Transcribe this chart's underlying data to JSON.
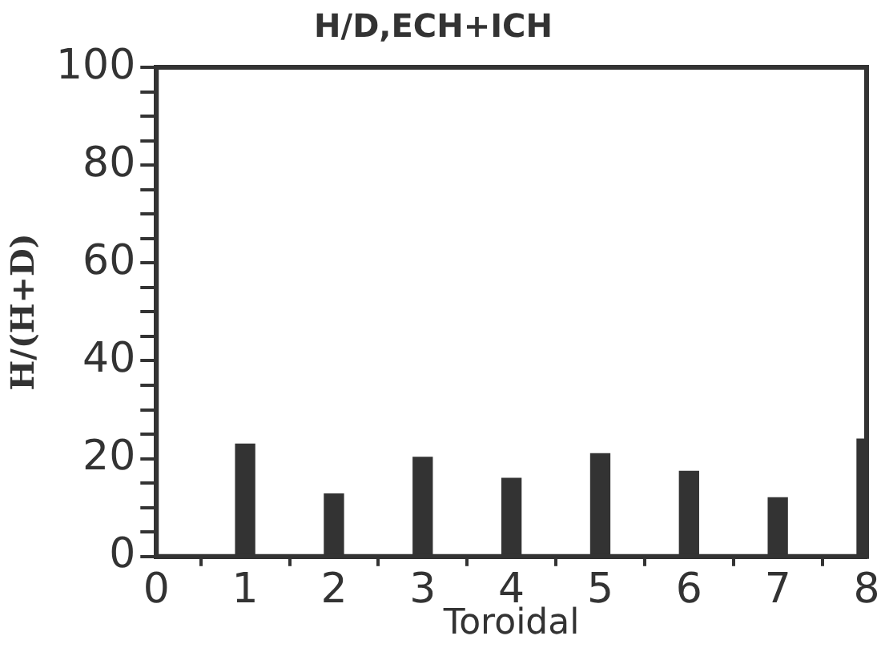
{
  "chart_data": {
    "type": "bar",
    "title": "H/D,ECH+ICH",
    "xlabel": "Toroidal",
    "ylabel": "H/(H+D)",
    "x": [
      1,
      2,
      3,
      4,
      5,
      6,
      7,
      8
    ],
    "values": [
      23,
      12.8,
      20.3,
      16,
      21,
      17.4,
      12,
      24
    ],
    "color": "#333333",
    "xlim": [
      0,
      8
    ],
    "xticks": [
      0,
      1,
      2,
      3,
      4,
      5,
      6,
      7,
      8
    ],
    "ylim": [
      0,
      100
    ],
    "yticks": [
      0,
      {
        "value": 5,
        "label": null
      },
      {
        "value": 10,
        "label": null
      },
      {
        "value": 15,
        "label": null
      },
      20,
      {
        "value": 25,
        "label": null
      },
      {
        "value": 30,
        "label": null
      },
      {
        "value": 35,
        "label": null
      },
      40,
      {
        "value": 45,
        "label": null
      },
      {
        "value": 50,
        "label": null
      },
      {
        "value": 55,
        "label": null
      },
      60,
      {
        "value": 65,
        "label": null
      },
      {
        "value": 70,
        "label": null
      },
      {
        "value": 75,
        "label": null
      },
      80,
      {
        "value": 85,
        "label": null
      },
      {
        "value": 90,
        "label": null
      },
      {
        "value": 95,
        "label": null
      },
      100
    ],
    "grid": false,
    "legend": false
  }
}
